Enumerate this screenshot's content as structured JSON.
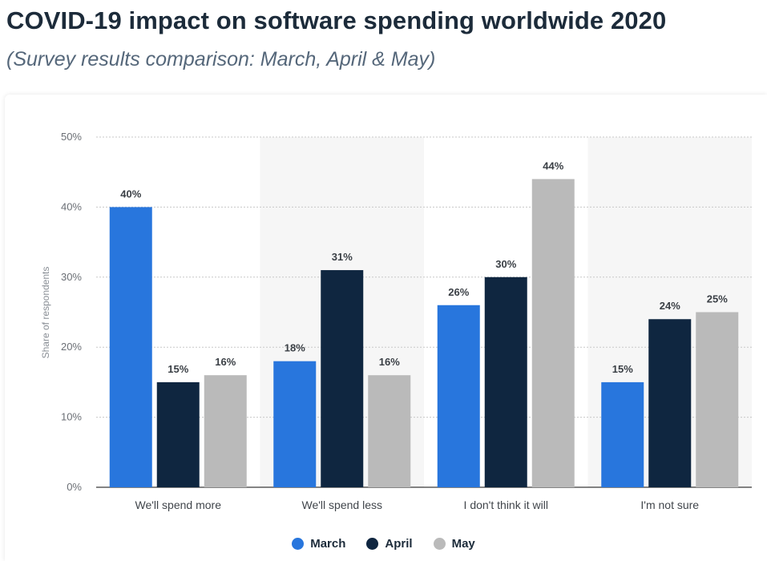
{
  "page": {
    "title": "COVID-19 impact on software spending worldwide 2020",
    "subtitle": "(Survey results comparison: March, April & May)"
  },
  "chart_data": {
    "type": "bar",
    "title": "",
    "xlabel": "",
    "ylabel": "Share of respondents",
    "ylim": [
      0,
      50
    ],
    "yticks": [
      "0%",
      "10%",
      "20%",
      "30%",
      "40%",
      "50%"
    ],
    "value_suffix": "%",
    "grid": true,
    "legend_position": "bottom",
    "categories": [
      "We'll spend more",
      "We'll spend less",
      "I don't think it will",
      "I'm not sure"
    ],
    "series": [
      {
        "name": "March",
        "color": "#2876dd",
        "values": [
          40,
          18,
          26,
          15
        ]
      },
      {
        "name": "April",
        "color": "#0f2640",
        "values": [
          15,
          31,
          30,
          24
        ]
      },
      {
        "name": "May",
        "color": "#bababa",
        "values": [
          16,
          16,
          44,
          25
        ]
      }
    ]
  }
}
